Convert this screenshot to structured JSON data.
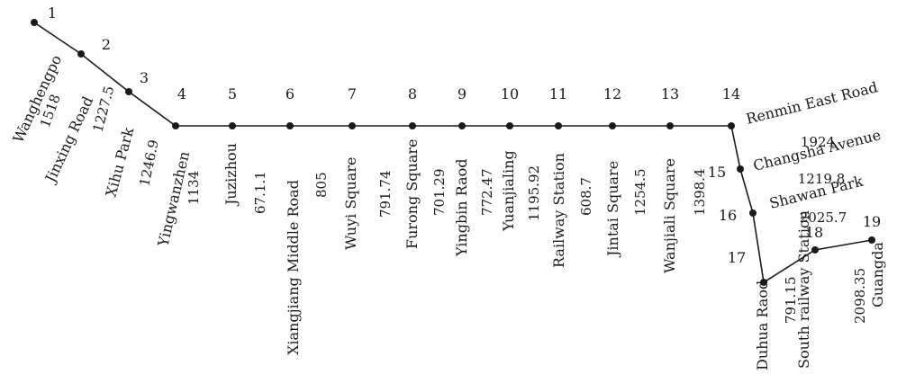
{
  "stations": [
    {
      "number": "1",
      "name": "Wanghengpo"
    },
    {
      "number": "2",
      "name": "Jinxing Road"
    },
    {
      "number": "3",
      "name": "Xihu Park"
    },
    {
      "number": "4",
      "name": "Yingwanzhen"
    },
    {
      "number": "5",
      "name": "Juzizhou"
    },
    {
      "number": "6",
      "name": "Xiangjiang Middle Road"
    },
    {
      "number": "7",
      "name": "Wuyi Square"
    },
    {
      "number": "8",
      "name": "Furong Square"
    },
    {
      "number": "9",
      "name": "Yingbin Raod"
    },
    {
      "number": "10",
      "name": "Yuanjialing"
    },
    {
      "number": "11",
      "name": "Railway Station"
    },
    {
      "number": "12",
      "name": "Jintai Square"
    },
    {
      "number": "13",
      "name": "Wanjiali Square"
    },
    {
      "number": "14",
      "name": "Renmin East Road"
    },
    {
      "number": "15",
      "name": "Changsha Avenue"
    },
    {
      "number": "16",
      "name": "Shawan Park"
    },
    {
      "number": "17",
      "name": "Duhua Raod"
    },
    {
      "number": "18",
      "name": "South railway Station"
    },
    {
      "number": "19",
      "name": "Guangda"
    }
  ],
  "distances": [
    {
      "segment": "1-2",
      "value": "1518"
    },
    {
      "segment": "2-3",
      "value": "1227.5"
    },
    {
      "segment": "3-4",
      "value": "1246.9"
    },
    {
      "segment": "4-5",
      "value": "1134"
    },
    {
      "segment": "5-6",
      "value": "67.1.1"
    },
    {
      "segment": "6-7",
      "value": "805"
    },
    {
      "segment": "7-8",
      "value": "791.74"
    },
    {
      "segment": "8-9",
      "value": "701.29"
    },
    {
      "segment": "9-10",
      "value": "772.47"
    },
    {
      "segment": "10-11",
      "value": "1195.92"
    },
    {
      "segment": "11-12",
      "value": "608.7"
    },
    {
      "segment": "12-13",
      "value": "1254.5"
    },
    {
      "segment": "13-14",
      "value": "1398.4"
    },
    {
      "segment": "14-15",
      "value": "1924"
    },
    {
      "segment": "15-16",
      "value": "1219.8"
    },
    {
      "segment": "16-17",
      "value": "2025.7"
    },
    {
      "segment": "17-18",
      "value": "791.15"
    },
    {
      "segment": "18-19",
      "value": "2098.35"
    }
  ]
}
